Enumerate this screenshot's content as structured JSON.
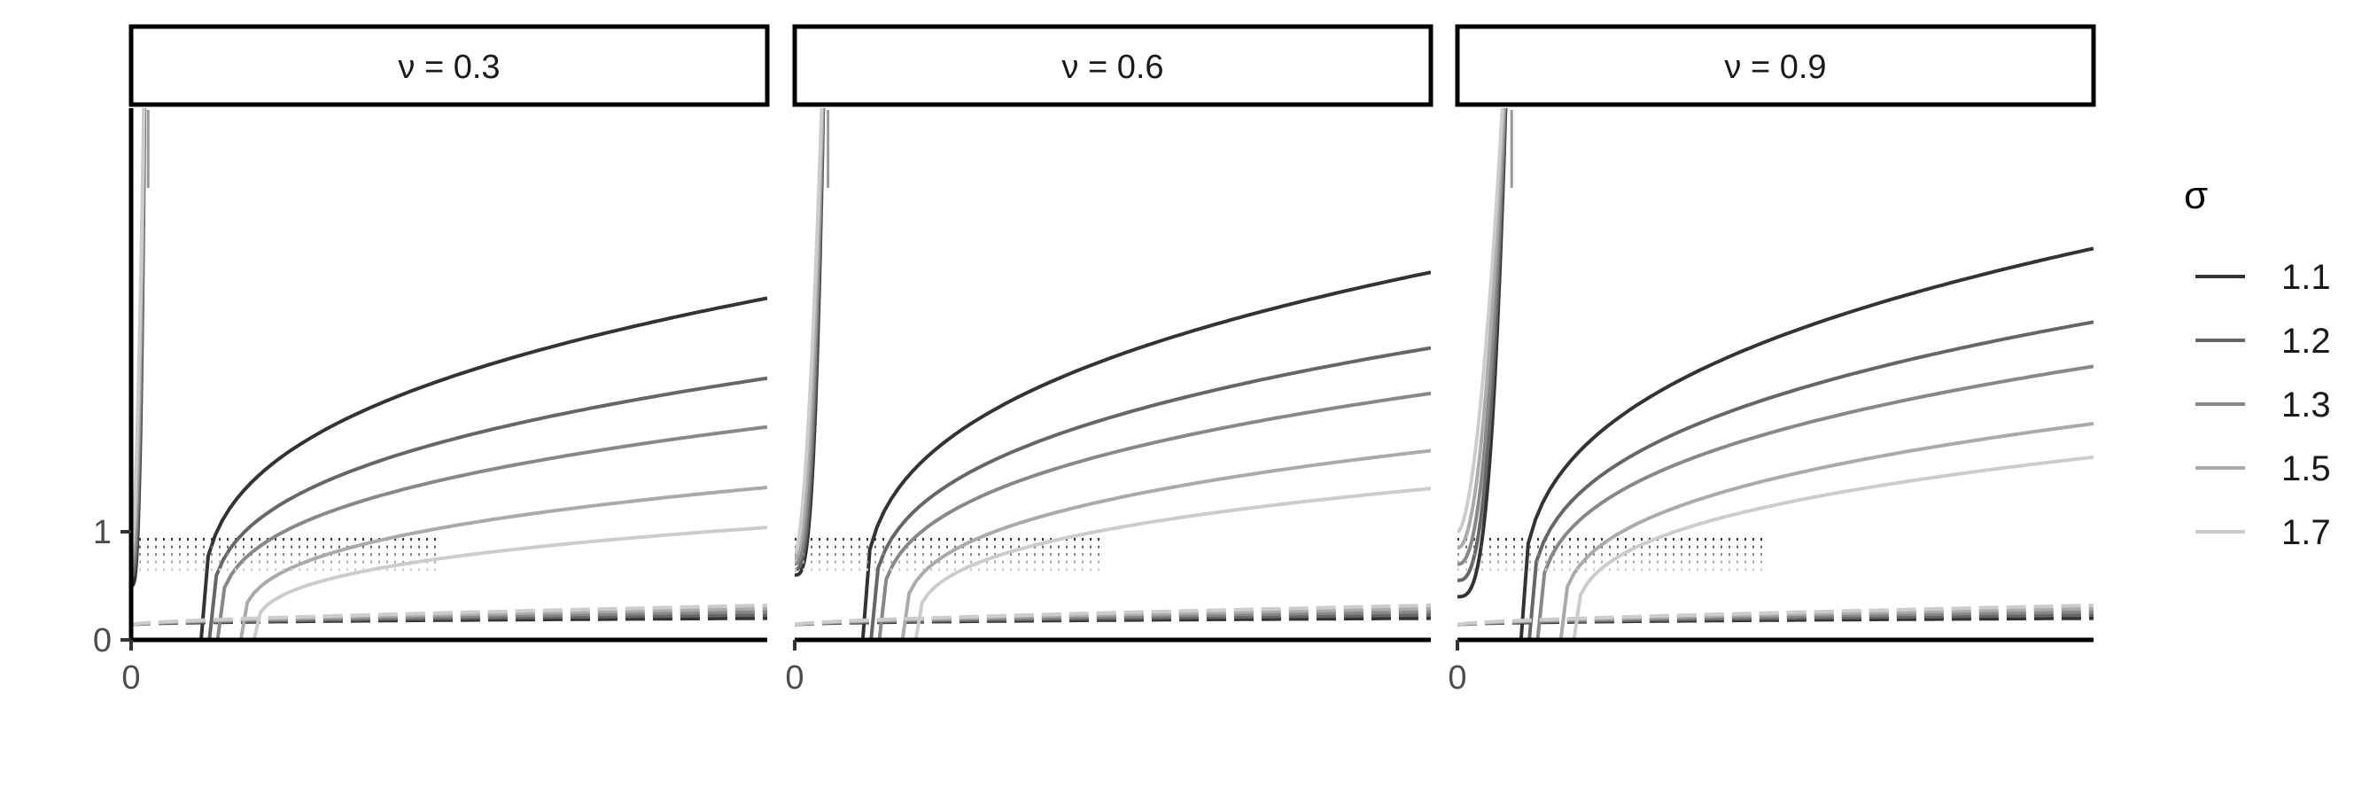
{
  "chart_data": {
    "type": "line",
    "title": "",
    "xlabel": "",
    "ylabel": "",
    "facets": [
      {
        "label": "ν = 0.3",
        "nu": 0.3,
        "pole": 0.0268
      },
      {
        "label": "ν = 0.6",
        "nu": 0.6,
        "pole": 0.0524
      },
      {
        "label": "ν = 0.9",
        "nu": 0.9,
        "pole": 0.0852
      }
    ],
    "x_ticks": [
      {
        "value": 0,
        "label": "0"
      }
    ],
    "y_ticks": [
      {
        "value": 0,
        "label": "0"
      },
      {
        "value": 1,
        "label": "1"
      }
    ],
    "xlim": [
      0,
      1
    ],
    "ylim": [
      0,
      5
    ],
    "legend": {
      "title": "σ",
      "position": "right",
      "entries": [
        "1.1",
        "1.2",
        "1.3",
        "1.5",
        "1.7"
      ]
    },
    "series": [
      {
        "name": "1.1",
        "sigma": 1.1,
        "color": "#333333",
        "right_branch_end": [
          3.16,
          3.4,
          3.62
        ],
        "dotted_level": 0.93,
        "dashed_level": 0.2
      },
      {
        "name": "1.2",
        "sigma": 1.2,
        "color": "#666666",
        "right_branch_end": [
          2.42,
          2.7,
          2.94
        ],
        "dotted_level": 0.86,
        "dashed_level": 0.21
      },
      {
        "name": "1.3",
        "sigma": 1.3,
        "color": "#888888",
        "right_branch_end": [
          1.97,
          2.28,
          2.53
        ],
        "dotted_level": 0.79,
        "dashed_level": 0.22
      },
      {
        "name": "1.5",
        "sigma": 1.5,
        "color": "#aaaaaa",
        "right_branch_end": [
          1.41,
          1.75,
          2.0
        ],
        "dotted_level": 0.72,
        "dashed_level": 0.23
      },
      {
        "name": "1.7",
        "sigma": 1.7,
        "color": "#cccccc",
        "right_branch_end": [
          1.04,
          1.4,
          1.69
        ],
        "dotted_level": 0.65,
        "dashed_level": 0.24
      }
    ]
  }
}
